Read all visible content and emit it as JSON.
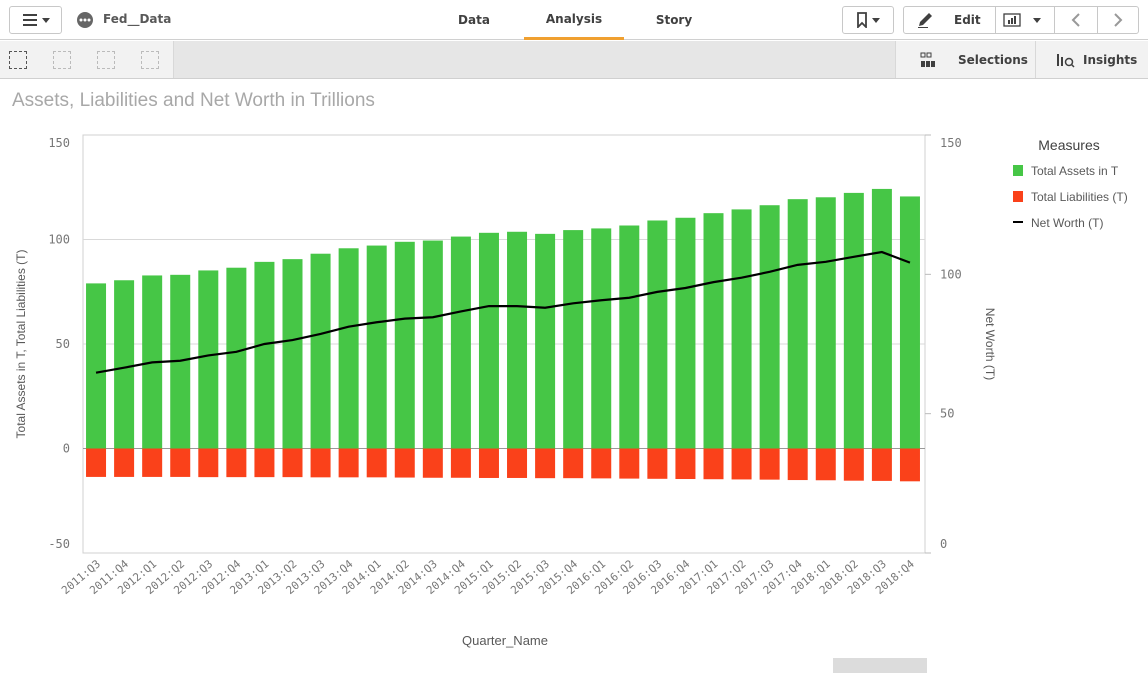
{
  "app": {
    "menu_icon": "hamburger-icon",
    "app_icon": "dots-circle-icon",
    "app_name": "Fed__Data"
  },
  "tabs": [
    {
      "label": "Data",
      "active": false
    },
    {
      "label": "Analysis",
      "active": true
    },
    {
      "label": "Story",
      "active": false
    }
  ],
  "header_right": {
    "bookmark_icon": "bookmark-icon",
    "edit_label": "Edit",
    "edit_icon": "pencil-icon",
    "chart_icon": "bar-chart-icon",
    "back_icon": "chevron-left-icon",
    "forward_icon": "chevron-right-icon"
  },
  "toolbar": {
    "selections_label": "Selections",
    "insights_label": "Insights"
  },
  "colors": {
    "accent": "#f0a030",
    "assets": "#46c646",
    "liabilities": "#fa411a",
    "net_worth": "#000000"
  },
  "chart_data": {
    "type": "bar",
    "title": "Assets, Liabilities and Net Worth in Trillions",
    "xlabel": "Quarter_Name",
    "ylabel": "Total Assets in T, Total Liabilities (T)",
    "ylabel_right": "Net Worth (T)",
    "ylim": [
      -50,
      150
    ],
    "ylim_right": [
      0,
      150
    ],
    "yticks": [
      150,
      100,
      50,
      0,
      -50
    ],
    "yticks_right": [
      150,
      100,
      50,
      0
    ],
    "grid": true,
    "legend_title": "Measures",
    "legend_position": "right",
    "categories": [
      "2011:Q3",
      "2011:Q4",
      "2012:Q1",
      "2012:Q2",
      "2012:Q3",
      "2012:Q4",
      "2013:Q1",
      "2013:Q2",
      "2013:Q3",
      "2013:Q4",
      "2014:Q1",
      "2014:Q2",
      "2014:Q3",
      "2014:Q4",
      "2015:Q1",
      "2015:Q2",
      "2015:Q3",
      "2015:Q4",
      "2016:Q1",
      "2016:Q2",
      "2016:Q3",
      "2016:Q4",
      "2017:Q1",
      "2017:Q2",
      "2017:Q3",
      "2017:Q4",
      "2018:Q1",
      "2018:Q2",
      "2018:Q3",
      "2018:Q4"
    ],
    "series": [
      {
        "name": "Total Assets in T",
        "type": "bar",
        "axis": "left",
        "values": [
          79.0,
          80.5,
          82.8,
          83.1,
          85.2,
          86.5,
          89.3,
          90.6,
          93.2,
          95.8,
          97.1,
          98.9,
          99.5,
          101.4,
          103.2,
          103.7,
          102.7,
          104.5,
          105.3,
          106.7,
          109.1,
          110.4,
          112.6,
          114.4,
          116.4,
          119.3,
          120.2,
          122.3,
          124.2,
          120.6
        ]
      },
      {
        "name": "Total Liabilities (T)",
        "type": "bar",
        "axis": "left",
        "values": [
          -13.6,
          -13.6,
          -13.6,
          -13.6,
          -13.7,
          -13.7,
          -13.7,
          -13.7,
          -13.8,
          -13.8,
          -13.8,
          -13.9,
          -14.0,
          -14.0,
          -14.1,
          -14.1,
          -14.2,
          -14.2,
          -14.3,
          -14.4,
          -14.5,
          -14.6,
          -14.7,
          -14.8,
          -14.9,
          -15.1,
          -15.2,
          -15.4,
          -15.5,
          -15.7
        ]
      },
      {
        "name": "Net Worth (T)",
        "type": "line",
        "axis": "right",
        "values": [
          64.7,
          66.5,
          68.4,
          69.0,
          70.9,
          72.2,
          75.0,
          76.4,
          78.6,
          81.2,
          82.8,
          84.1,
          84.6,
          86.7,
          88.6,
          88.6,
          88.0,
          89.6,
          90.7,
          91.6,
          93.7,
          95.1,
          97.2,
          98.8,
          100.9,
          103.4,
          104.5,
          106.3,
          108.0,
          104.2
        ]
      }
    ]
  }
}
